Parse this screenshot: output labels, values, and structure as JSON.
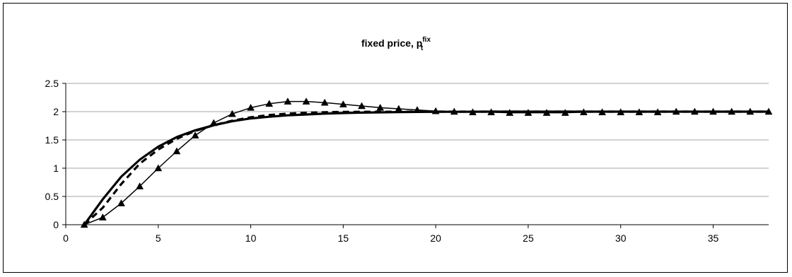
{
  "chart_data": {
    "type": "line",
    "title": "fixed price, p",
    "title_superscript": "fix",
    "title_subscript": "t",
    "xlabel": "",
    "ylabel": "",
    "xlim": [
      0,
      38
    ],
    "ylim": [
      0,
      2.5
    ],
    "xticks": [
      0,
      5,
      10,
      15,
      20,
      25,
      30,
      35
    ],
    "yticks": [
      0,
      0.5,
      1,
      1.5,
      2,
      2.5
    ],
    "ytick_labels": [
      "0",
      "0.5",
      "1",
      "1.5",
      "2",
      "2.5"
    ],
    "grid": "horizontal",
    "legend": "none",
    "x": [
      1,
      2,
      3,
      4,
      5,
      6,
      7,
      8,
      9,
      10,
      11,
      12,
      13,
      14,
      15,
      16,
      17,
      18,
      19,
      20,
      21,
      22,
      23,
      24,
      25,
      26,
      27,
      28,
      29,
      30,
      31,
      32,
      33,
      34,
      35,
      36,
      37,
      38
    ],
    "series": [
      {
        "style": "solid-thick",
        "color": "#000000",
        "values": [
          0,
          0.45,
          0.85,
          1.15,
          1.38,
          1.55,
          1.67,
          1.76,
          1.83,
          1.88,
          1.91,
          1.935,
          1.95,
          1.965,
          1.975,
          1.982,
          1.988,
          1.992,
          1.995,
          1.997,
          1.998,
          1.999,
          2,
          2,
          2,
          2,
          2,
          2,
          2,
          2,
          2,
          2,
          2,
          2,
          2,
          2,
          2,
          2
        ]
      },
      {
        "style": "dashed-thick",
        "color": "#000000",
        "values": [
          0,
          0.3,
          0.72,
          1.08,
          1.33,
          1.52,
          1.66,
          1.76,
          1.84,
          1.9,
          1.94,
          1.965,
          1.98,
          1.99,
          1.995,
          1.997,
          1.998,
          1.999,
          2,
          2,
          2,
          2,
          2,
          2,
          2,
          2,
          2,
          2,
          2,
          2,
          2,
          2,
          2,
          2,
          2,
          2,
          2,
          2
        ]
      },
      {
        "style": "solid-triangles",
        "color": "#000000",
        "values": [
          0,
          0.13,
          0.38,
          0.68,
          1.0,
          1.3,
          1.58,
          1.8,
          1.96,
          2.07,
          2.14,
          2.18,
          2.18,
          2.16,
          2.13,
          2.1,
          2.07,
          2.05,
          2.03,
          2.01,
          2.0,
          1.99,
          1.99,
          1.98,
          1.98,
          1.98,
          1.98,
          1.99,
          1.99,
          1.99,
          1.99,
          1.99,
          2,
          2,
          2,
          2,
          2,
          2
        ]
      }
    ]
  }
}
